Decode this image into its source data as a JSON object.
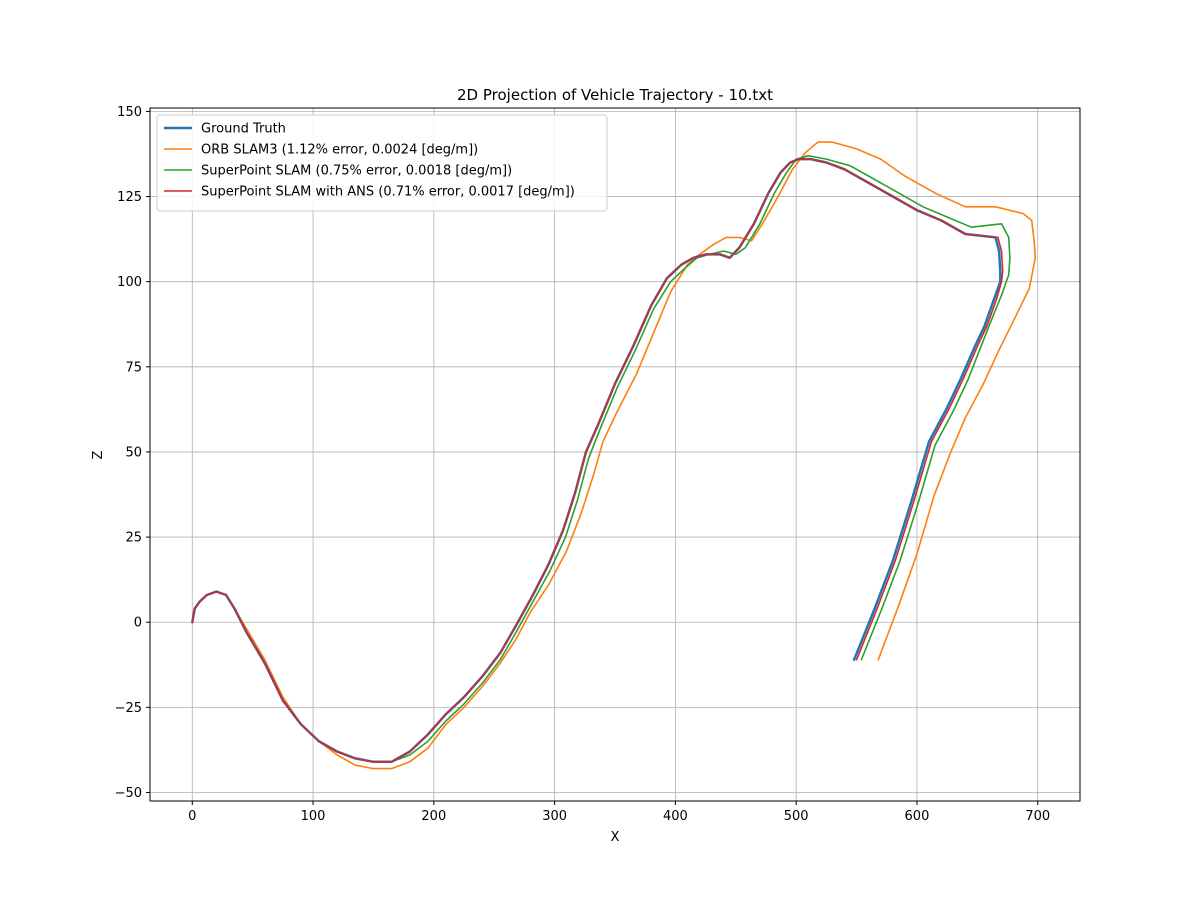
{
  "chart_data": {
    "type": "line",
    "title": "2D Projection of Vehicle Trajectory - 10.txt",
    "xlabel": "X",
    "ylabel": "Z",
    "xlim": [
      -35,
      735
    ],
    "ylim": [
      -52.5,
      151
    ],
    "xticks": [
      0,
      100,
      200,
      300,
      400,
      500,
      600,
      700
    ],
    "yticks": [
      -50,
      -25,
      0,
      25,
      50,
      75,
      100,
      125,
      150
    ],
    "grid": true,
    "legend_position": "upper-left",
    "series": [
      {
        "name": "Ground Truth",
        "color": "#1f77b4",
        "width": 2.5,
        "points": [
          [
            0,
            0
          ],
          [
            2,
            4
          ],
          [
            6,
            6
          ],
          [
            12,
            8
          ],
          [
            20,
            9
          ],
          [
            28,
            8
          ],
          [
            35,
            4
          ],
          [
            45,
            -3
          ],
          [
            60,
            -12
          ],
          [
            75,
            -23
          ],
          [
            90,
            -30
          ],
          [
            105,
            -35
          ],
          [
            120,
            -38
          ],
          [
            135,
            -40
          ],
          [
            150,
            -41
          ],
          [
            165,
            -41
          ],
          [
            180,
            -38
          ],
          [
            195,
            -33
          ],
          [
            210,
            -27
          ],
          [
            225,
            -22
          ],
          [
            240,
            -16
          ],
          [
            255,
            -9
          ],
          [
            268,
            -1
          ],
          [
            282,
            8
          ],
          [
            295,
            17
          ],
          [
            307,
            27
          ],
          [
            317,
            38
          ],
          [
            326,
            50
          ],
          [
            336,
            58
          ],
          [
            350,
            70
          ],
          [
            365,
            81
          ],
          [
            380,
            93
          ],
          [
            393,
            101
          ],
          [
            405,
            105
          ],
          [
            415,
            107
          ],
          [
            425,
            108
          ],
          [
            437,
            108
          ],
          [
            445,
            107
          ],
          [
            453,
            110
          ],
          [
            465,
            117
          ],
          [
            477,
            126
          ],
          [
            487,
            132
          ],
          [
            495,
            135
          ],
          [
            502,
            136
          ],
          [
            512,
            136
          ],
          [
            525,
            135
          ],
          [
            540,
            133
          ],
          [
            560,
            129
          ],
          [
            580,
            125
          ],
          [
            600,
            121
          ],
          [
            620,
            118
          ],
          [
            640,
            114
          ],
          [
            665,
            113
          ],
          [
            668,
            109
          ],
          [
            669,
            103
          ],
          [
            669,
            100
          ],
          [
            664,
            95
          ],
          [
            656,
            87
          ],
          [
            648,
            81
          ],
          [
            637,
            72
          ],
          [
            625,
            63
          ],
          [
            610,
            53
          ],
          [
            595,
            35
          ],
          [
            580,
            18
          ],
          [
            565,
            4
          ],
          [
            548,
            -11
          ]
        ]
      },
      {
        "name": "ORB SLAM3 (1.12% error, 0.0024 [deg/m])",
        "color": "#ff7f0e",
        "width": 1.6,
        "points": [
          [
            0,
            0
          ],
          [
            2,
            4
          ],
          [
            6,
            6
          ],
          [
            12,
            8
          ],
          [
            20,
            9
          ],
          [
            28,
            8
          ],
          [
            35,
            4
          ],
          [
            45,
            -2
          ],
          [
            60,
            -11
          ],
          [
            75,
            -22
          ],
          [
            90,
            -30
          ],
          [
            105,
            -35
          ],
          [
            120,
            -39
          ],
          [
            135,
            -42
          ],
          [
            150,
            -43
          ],
          [
            165,
            -43
          ],
          [
            180,
            -41
          ],
          [
            195,
            -37
          ],
          [
            210,
            -30
          ],
          [
            225,
            -25
          ],
          [
            240,
            -19
          ],
          [
            255,
            -12
          ],
          [
            268,
            -5
          ],
          [
            280,
            3
          ],
          [
            295,
            11
          ],
          [
            310,
            21
          ],
          [
            322,
            32
          ],
          [
            332,
            43
          ],
          [
            340,
            53
          ],
          [
            352,
            62
          ],
          [
            368,
            73
          ],
          [
            382,
            85
          ],
          [
            396,
            97
          ],
          [
            410,
            105
          ],
          [
            420,
            108
          ],
          [
            432,
            111
          ],
          [
            442,
            113
          ],
          [
            453,
            113
          ],
          [
            463,
            112
          ],
          [
            472,
            117
          ],
          [
            485,
            125
          ],
          [
            497,
            133
          ],
          [
            508,
            138
          ],
          [
            518,
            141
          ],
          [
            530,
            141
          ],
          [
            550,
            139
          ],
          [
            570,
            136
          ],
          [
            590,
            131
          ],
          [
            615,
            126
          ],
          [
            640,
            122
          ],
          [
            665,
            122
          ],
          [
            688,
            120
          ],
          [
            695,
            118
          ],
          [
            697,
            112
          ],
          [
            698,
            107
          ],
          [
            693,
            98
          ],
          [
            682,
            90
          ],
          [
            668,
            80
          ],
          [
            655,
            70
          ],
          [
            640,
            60
          ],
          [
            628,
            50
          ],
          [
            614,
            37
          ],
          [
            600,
            20
          ],
          [
            585,
            5
          ],
          [
            568,
            -11
          ]
        ]
      },
      {
        "name": "SuperPoint SLAM (0.75% error, 0.0018 [deg/m])",
        "color": "#2ca02c",
        "width": 1.6,
        "points": [
          [
            0,
            0
          ],
          [
            2,
            4
          ],
          [
            6,
            6
          ],
          [
            12,
            8
          ],
          [
            20,
            9
          ],
          [
            28,
            8
          ],
          [
            35,
            4
          ],
          [
            45,
            -3
          ],
          [
            60,
            -12
          ],
          [
            75,
            -23
          ],
          [
            90,
            -30
          ],
          [
            105,
            -35
          ],
          [
            120,
            -38
          ],
          [
            135,
            -40
          ],
          [
            150,
            -41
          ],
          [
            165,
            -41
          ],
          [
            180,
            -39
          ],
          [
            195,
            -35
          ],
          [
            210,
            -29
          ],
          [
            225,
            -24
          ],
          [
            240,
            -18
          ],
          [
            255,
            -11
          ],
          [
            268,
            -3
          ],
          [
            282,
            6
          ],
          [
            296,
            15
          ],
          [
            309,
            25
          ],
          [
            319,
            36
          ],
          [
            328,
            48
          ],
          [
            338,
            57
          ],
          [
            352,
            69
          ],
          [
            367,
            80
          ],
          [
            382,
            92
          ],
          [
            396,
            100
          ],
          [
            408,
            104
          ],
          [
            418,
            107
          ],
          [
            428,
            108
          ],
          [
            440,
            109
          ],
          [
            450,
            108
          ],
          [
            458,
            110
          ],
          [
            470,
            117
          ],
          [
            482,
            126
          ],
          [
            492,
            132
          ],
          [
            500,
            136
          ],
          [
            510,
            137
          ],
          [
            525,
            136
          ],
          [
            545,
            134
          ],
          [
            565,
            130
          ],
          [
            585,
            126
          ],
          [
            605,
            122
          ],
          [
            625,
            119
          ],
          [
            645,
            116
          ],
          [
            670,
            117
          ],
          [
            676,
            113
          ],
          [
            677,
            107
          ],
          [
            676,
            102
          ],
          [
            670,
            96
          ],
          [
            662,
            89
          ],
          [
            653,
            81
          ],
          [
            642,
            71
          ],
          [
            630,
            62
          ],
          [
            615,
            52
          ],
          [
            601,
            35
          ],
          [
            586,
            18
          ],
          [
            571,
            4
          ],
          [
            554,
            -11
          ]
        ]
      },
      {
        "name": "SuperPoint SLAM with ANS (0.71% error, 0.0017 [deg/m])",
        "color": "#d62728",
        "width": 1.6,
        "points": [
          [
            0,
            0
          ],
          [
            2,
            4
          ],
          [
            6,
            6
          ],
          [
            12,
            8
          ],
          [
            20,
            9
          ],
          [
            28,
            8
          ],
          [
            35,
            4
          ],
          [
            45,
            -3
          ],
          [
            60,
            -12
          ],
          [
            75,
            -23
          ],
          [
            90,
            -30
          ],
          [
            105,
            -35
          ],
          [
            120,
            -38
          ],
          [
            135,
            -40
          ],
          [
            150,
            -41
          ],
          [
            165,
            -41
          ],
          [
            180,
            -38
          ],
          [
            195,
            -33
          ],
          [
            210,
            -27
          ],
          [
            225,
            -22
          ],
          [
            240,
            -16
          ],
          [
            255,
            -9
          ],
          [
            268,
            -1
          ],
          [
            282,
            8
          ],
          [
            295,
            17
          ],
          [
            307,
            27
          ],
          [
            317,
            38
          ],
          [
            326,
            50
          ],
          [
            336,
            58
          ],
          [
            350,
            70
          ],
          [
            365,
            81
          ],
          [
            380,
            93
          ],
          [
            393,
            101
          ],
          [
            405,
            105
          ],
          [
            415,
            107
          ],
          [
            425,
            108
          ],
          [
            437,
            108
          ],
          [
            445,
            107
          ],
          [
            453,
            110
          ],
          [
            465,
            117
          ],
          [
            477,
            126
          ],
          [
            487,
            132
          ],
          [
            495,
            135
          ],
          [
            502,
            136
          ],
          [
            512,
            136
          ],
          [
            525,
            135
          ],
          [
            540,
            133
          ],
          [
            560,
            129
          ],
          [
            580,
            125
          ],
          [
            600,
            121
          ],
          [
            620,
            118
          ],
          [
            640,
            114
          ],
          [
            667,
            113
          ],
          [
            670,
            109
          ],
          [
            671,
            103
          ],
          [
            670,
            100
          ],
          [
            666,
            95
          ],
          [
            658,
            87
          ],
          [
            650,
            81
          ],
          [
            639,
            72
          ],
          [
            627,
            63
          ],
          [
            612,
            53
          ],
          [
            597,
            35
          ],
          [
            582,
            18
          ],
          [
            567,
            4
          ],
          [
            550,
            -11
          ]
        ]
      }
    ]
  }
}
